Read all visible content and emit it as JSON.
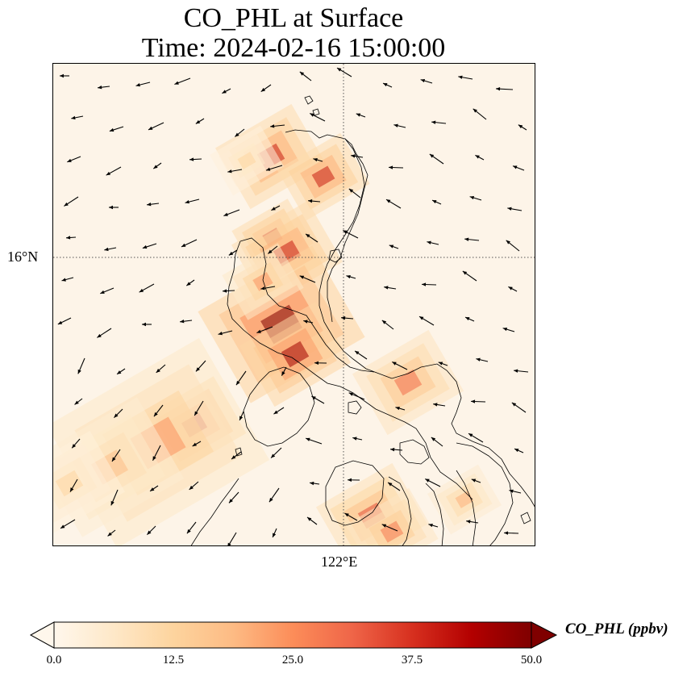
{
  "title": {
    "line1": "CO_PHL at Surface",
    "line2": "Time: 2024-02-16 15:00:00"
  },
  "map": {
    "lat_tick_label": "16°N",
    "lon_tick_label": "122°E",
    "gridline_style": "dotted",
    "background_color": "#fdf4e8",
    "coastline_color": "#000000"
  },
  "colorbar": {
    "label": "CO_PHL (ppbv)",
    "ticks": [
      "0.0",
      "12.5",
      "25.0",
      "37.5",
      "50.0"
    ],
    "min": 0,
    "max": 50,
    "extend": "both",
    "colormap": "OrRd",
    "colors": [
      "#fff7ec",
      "#fee8c8",
      "#fdd49e",
      "#fdbb84",
      "#fc8d59",
      "#ef6548",
      "#d7301f",
      "#b30000",
      "#7f0000"
    ]
  }
}
